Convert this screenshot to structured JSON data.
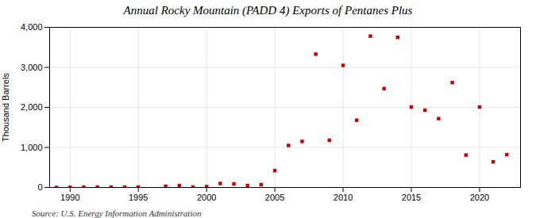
{
  "chart_data": {
    "type": "scatter",
    "title": "Annual Rocky Mountain (PADD 4) Exports of Pentanes Plus",
    "ylabel": "Thousand Barrels",
    "source": "Source: U.S. Energy Information Administration",
    "x": [
      1989,
      1990,
      1991,
      1992,
      1993,
      1994,
      1995,
      1997,
      1998,
      1999,
      2000,
      2001,
      2002,
      2003,
      2004,
      2005,
      2006,
      2007,
      2008,
      2009,
      2010,
      2011,
      2012,
      2013,
      2014,
      2015,
      2016,
      2017,
      2018,
      2019,
      2020,
      2021,
      2022
    ],
    "values": [
      0,
      5,
      10,
      10,
      8,
      7,
      10,
      30,
      50,
      10,
      20,
      100,
      90,
      50,
      70,
      420,
      1050,
      1150,
      3330,
      1180,
      3050,
      1680,
      3780,
      2470,
      3750,
      2010,
      1930,
      1720,
      2620,
      810,
      2010,
      640,
      820
    ],
    "color": "#cc0000",
    "marker": "square",
    "xlim": [
      1988.5,
      2023
    ],
    "xticks": [
      1990,
      1995,
      2000,
      2005,
      2010,
      2015,
      2020
    ],
    "ylim": [
      0,
      4000
    ],
    "yticks": [
      0,
      {
        "value": 1000,
        "label": "1,000"
      },
      {
        "value": 2000,
        "label": "2,000"
      },
      {
        "value": 3000,
        "label": "3,000"
      },
      {
        "value": 4000,
        "label": "4,000"
      }
    ],
    "grid": true
  }
}
